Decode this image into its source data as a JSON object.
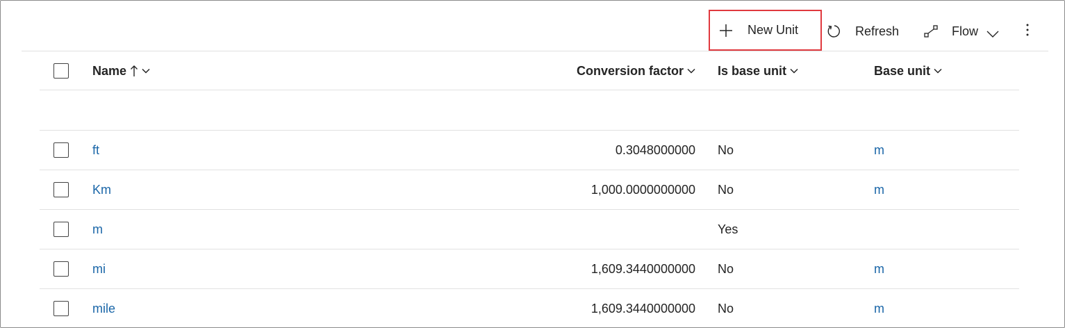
{
  "toolbar": {
    "new_label": "New Unit",
    "refresh_label": "Refresh",
    "flow_label": "Flow",
    "new_icon": "plus-icon",
    "refresh_icon": "refresh-icon",
    "flow_icon": "flow-icon",
    "more_icon": "more-vertical-icon",
    "highlight_color": "#e0393e"
  },
  "grid": {
    "columns": {
      "name": "Name",
      "conversion_factor": "Conversion factor",
      "is_base_unit": "Is base unit",
      "base_unit": "Base unit"
    },
    "sort": {
      "column": "name",
      "direction": "ascending"
    },
    "rows": [
      {
        "name": "ft",
        "conversion_factor": "0.3048000000",
        "is_base_unit": "No",
        "base_unit": "m"
      },
      {
        "name": "Km",
        "conversion_factor": "1,000.0000000000",
        "is_base_unit": "No",
        "base_unit": "m"
      },
      {
        "name": "m",
        "conversion_factor": "",
        "is_base_unit": "Yes",
        "base_unit": ""
      },
      {
        "name": "mi",
        "conversion_factor": "1,609.3440000000",
        "is_base_unit": "No",
        "base_unit": "m"
      },
      {
        "name": "mile",
        "conversion_factor": "1,609.3440000000",
        "is_base_unit": "No",
        "base_unit": "m"
      }
    ]
  },
  "colors": {
    "link": "#1a66a8",
    "text": "#242424",
    "divider": "#e1e1e1"
  }
}
